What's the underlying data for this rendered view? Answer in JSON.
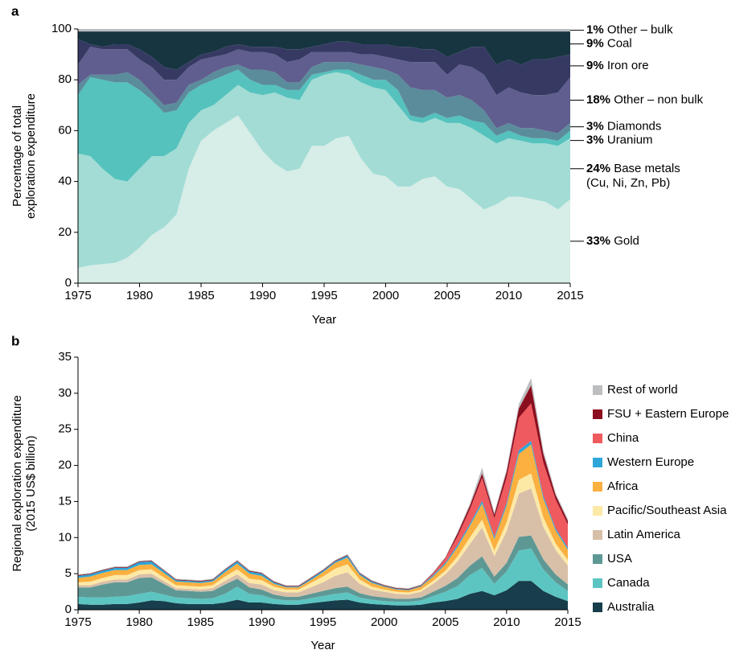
{
  "chart_data": [
    {
      "type": "stacked_area",
      "panel": "a",
      "xlabel": "Year",
      "ylabel": [
        "Percentage of total",
        "exploration expenditure"
      ],
      "x": [
        1975,
        1976,
        1977,
        1978,
        1979,
        1980,
        1981,
        1982,
        1983,
        1984,
        1985,
        1986,
        1987,
        1988,
        1989,
        1990,
        1991,
        1992,
        1993,
        1994,
        1995,
        1996,
        1997,
        1998,
        1999,
        2000,
        2001,
        2002,
        2003,
        2004,
        2005,
        2006,
        2007,
        2008,
        2009,
        2010,
        2011,
        2012,
        2013,
        2014,
        2015
      ],
      "xlim": [
        1975,
        2015
      ],
      "xticks": [
        1975,
        1980,
        1985,
        1990,
        1995,
        2000,
        2005,
        2010,
        2015
      ],
      "ylim": [
        0,
        100
      ],
      "yticks": [
        0,
        20,
        40,
        60,
        80,
        100
      ],
      "series": [
        {
          "name": "Gold",
          "end_label": "33%",
          "color": "#d7ede7",
          "values": [
            6,
            7,
            7.5,
            8,
            10,
            14,
            19,
            22,
            27,
            45,
            56,
            60,
            63,
            66,
            59,
            52,
            47,
            44,
            45,
            54,
            54,
            57,
            58,
            49,
            43,
            42,
            38,
            38,
            41,
            42,
            38,
            37,
            33,
            29,
            31,
            34,
            34,
            33,
            32,
            29,
            33
          ]
        },
        {
          "name": "Base metals",
          "note": "(Cu, Ni, Zn, Pb)",
          "end_label": "24%",
          "color": "#a2dcd5",
          "values": [
            45,
            43,
            37.5,
            33,
            30,
            31,
            31,
            28,
            26,
            18,
            12,
            10,
            11,
            12,
            16,
            22,
            28,
            29,
            27,
            26,
            28,
            26,
            24,
            30,
            34,
            34,
            32,
            26,
            22,
            23,
            25,
            26,
            28,
            29,
            24,
            23,
            22,
            22,
            23,
            25,
            24
          ]
        },
        {
          "name": "Uranium",
          "end_label": "3%",
          "color": "#55c2bd",
          "values": [
            23,
            31,
            35,
            38,
            39,
            31,
            22,
            17,
            15,
            12,
            10,
            10,
            8,
            6,
            5,
            4,
            3,
            3,
            4,
            2,
            1,
            1,
            2,
            3,
            3,
            4,
            6,
            2,
            2,
            2,
            2,
            3,
            3,
            5,
            3,
            3,
            2,
            2,
            2,
            2,
            3
          ]
        },
        {
          "name": "Diamonds",
          "end_label": "3%",
          "color": "#5b8c9b",
          "values": [
            4,
            1,
            2,
            3,
            4,
            4,
            3,
            3,
            3,
            3,
            2,
            3,
            3,
            2,
            4,
            6,
            5,
            3,
            3,
            3,
            4,
            3,
            3,
            4,
            5,
            4,
            6,
            11,
            11,
            9,
            8,
            8,
            8,
            5,
            3,
            3,
            3,
            4,
            3,
            3,
            3
          ]
        },
        {
          "name": "Other – non bulk",
          "end_label": "18%",
          "color": "#5f5e8f",
          "values": [
            8,
            11,
            10,
            10,
            9,
            8,
            10,
            10,
            9,
            7,
            8,
            6,
            5,
            6,
            7,
            7,
            7,
            8,
            9,
            6,
            4,
            4,
            4,
            4,
            5,
            5,
            6,
            10,
            11,
            11,
            9,
            12,
            13,
            14,
            13,
            14,
            14,
            13,
            14,
            16,
            18
          ]
        },
        {
          "name": "Iron ore",
          "end_label": "9%",
          "color": "#363a63",
          "values": [
            10,
            1,
            1,
            2,
            2,
            4,
            4,
            5,
            4,
            2,
            2,
            2,
            3,
            2,
            2,
            2,
            3,
            5,
            4,
            2,
            3,
            4,
            4,
            4,
            4,
            5,
            5,
            6,
            5,
            5,
            7,
            5,
            8,
            11,
            12,
            11,
            11,
            14,
            14,
            14,
            9
          ]
        },
        {
          "name": "Coal",
          "end_label": "9%",
          "color": "#163540",
          "values": [
            3,
            5,
            6,
            5,
            5,
            7,
            10,
            14,
            15,
            12,
            9,
            8,
            6,
            5,
            6,
            6,
            6,
            7,
            7,
            6,
            5,
            4,
            4,
            5,
            5,
            5,
            6,
            6,
            7,
            7,
            10,
            8,
            6,
            6,
            13,
            11,
            13,
            11,
            11,
            10,
            9
          ]
        },
        {
          "name": "Other – bulk",
          "end_label": "1%",
          "color": "#b9bdc0",
          "values": [
            1,
            1,
            1,
            1,
            1,
            1,
            1,
            1,
            1,
            1,
            1,
            1,
            1,
            1,
            1,
            1,
            1,
            1,
            1,
            1,
            1,
            1,
            1,
            1,
            1,
            1,
            1,
            1,
            1,
            1,
            1,
            1,
            1,
            1,
            1,
            1,
            1,
            1,
            1,
            1,
            1
          ]
        }
      ]
    },
    {
      "type": "stacked_area",
      "panel": "b",
      "xlabel": "Year",
      "ylabel": [
        "Regional exploration expenditure",
        "(2015 US$ billion)"
      ],
      "legend": "right",
      "x": [
        1975,
        1976,
        1977,
        1978,
        1979,
        1980,
        1981,
        1982,
        1983,
        1984,
        1985,
        1986,
        1987,
        1988,
        1989,
        1990,
        1991,
        1992,
        1993,
        1994,
        1995,
        1996,
        1997,
        1998,
        1999,
        2000,
        2001,
        2002,
        2003,
        2004,
        2005,
        2006,
        2007,
        2008,
        2009,
        2010,
        2011,
        2012,
        2013,
        2014,
        2015
      ],
      "xlim": [
        1975,
        2015
      ],
      "xticks": [
        1975,
        1980,
        1985,
        1990,
        1995,
        2000,
        2005,
        2010,
        2015
      ],
      "ylim": [
        0,
        35
      ],
      "yticks": [
        0,
        5,
        10,
        15,
        20,
        25,
        30,
        35
      ],
      "series": [
        {
          "name": "Australia",
          "color": "#173e4a",
          "values": [
            0.8,
            0.7,
            0.7,
            0.8,
            0.8,
            1.0,
            1.3,
            1.2,
            0.9,
            0.8,
            0.8,
            0.8,
            1.0,
            1.4,
            1.0,
            1.0,
            0.8,
            0.7,
            0.7,
            0.9,
            1.1,
            1.3,
            1.4,
            1.0,
            0.8,
            0.7,
            0.6,
            0.6,
            0.7,
            1.0,
            1.2,
            1.5,
            2.2,
            2.6,
            2.0,
            2.7,
            4.0,
            4.0,
            2.6,
            1.8,
            1.2
          ]
        },
        {
          "name": "Canada",
          "color": "#5cc5c1",
          "values": [
            1.0,
            1.0,
            1.0,
            1.0,
            1.1,
            1.2,
            1.2,
            0.9,
            0.8,
            0.8,
            0.7,
            0.8,
            1.2,
            1.8,
            1.2,
            1.0,
            0.7,
            0.6,
            0.6,
            0.7,
            0.8,
            0.9,
            1.0,
            0.7,
            0.6,
            0.5,
            0.5,
            0.5,
            0.6,
            0.9,
            1.3,
            1.8,
            2.6,
            3.2,
            1.6,
            2.6,
            4.2,
            4.5,
            3.0,
            2.0,
            1.4
          ]
        },
        {
          "name": "USA",
          "color": "#5e9895",
          "values": [
            1.3,
            1.4,
            1.8,
            2.0,
            1.9,
            2.2,
            2.0,
            1.5,
            1.0,
            1.0,
            1.0,
            1.0,
            1.3,
            1.1,
            0.9,
            0.8,
            0.6,
            0.5,
            0.5,
            0.6,
            0.7,
            0.8,
            0.8,
            0.6,
            0.5,
            0.5,
            0.4,
            0.4,
            0.4,
            0.6,
            0.8,
            1.1,
            1.3,
            1.6,
            1.0,
            1.2,
            1.9,
            1.8,
            1.4,
            1.1,
            0.9
          ]
        },
        {
          "name": "Latin America",
          "color": "#d8bfa8",
          "values": [
            0.3,
            0.3,
            0.4,
            0.4,
            0.4,
            0.5,
            0.5,
            0.4,
            0.3,
            0.3,
            0.3,
            0.4,
            0.5,
            0.6,
            0.6,
            0.7,
            0.6,
            0.6,
            0.6,
            0.9,
            1.2,
            1.7,
            2.0,
            1.3,
            0.9,
            0.8,
            0.7,
            0.6,
            0.8,
            1.1,
            1.6,
            2.3,
            3.0,
            4.0,
            2.8,
            4.4,
            6.0,
            6.5,
            4.5,
            3.4,
            2.6
          ]
        },
        {
          "name": "Pacific/Southeast Asia",
          "color": "#fde9a6",
          "values": [
            0.4,
            0.5,
            0.5,
            0.6,
            0.6,
            0.6,
            0.6,
            0.5,
            0.4,
            0.4,
            0.4,
            0.4,
            0.6,
            0.7,
            0.6,
            0.6,
            0.5,
            0.4,
            0.4,
            0.6,
            0.8,
            1.0,
            1.1,
            0.6,
            0.4,
            0.3,
            0.3,
            0.3,
            0.3,
            0.4,
            0.5,
            0.7,
            0.9,
            1.1,
            0.8,
            1.2,
            1.9,
            2.1,
            1.3,
            0.9,
            0.8
          ]
        },
        {
          "name": "Africa",
          "color": "#fbb040",
          "values": [
            0.6,
            0.7,
            0.7,
            0.7,
            0.7,
            0.7,
            0.7,
            0.6,
            0.5,
            0.5,
            0.5,
            0.5,
            0.6,
            0.8,
            0.7,
            0.6,
            0.4,
            0.3,
            0.3,
            0.4,
            0.6,
            0.8,
            0.9,
            0.6,
            0.5,
            0.4,
            0.3,
            0.3,
            0.4,
            0.6,
            0.9,
            1.3,
            1.6,
            2.2,
            1.6,
            2.3,
            3.6,
            4.0,
            2.6,
            1.8,
            1.4
          ]
        },
        {
          "name": "Western Europe",
          "color": "#2ea6d9",
          "values": [
            0.3,
            0.3,
            0.3,
            0.3,
            0.3,
            0.4,
            0.4,
            0.3,
            0.2,
            0.2,
            0.2,
            0.2,
            0.3,
            0.3,
            0.3,
            0.3,
            0.2,
            0.1,
            0.1,
            0.2,
            0.2,
            0.2,
            0.3,
            0.2,
            0.2,
            0.1,
            0.1,
            0.1,
            0.1,
            0.2,
            0.2,
            0.3,
            0.3,
            0.4,
            0.3,
            0.4,
            0.5,
            0.5,
            0.4,
            0.3,
            0.3
          ]
        },
        {
          "name": "China",
          "color": "#ef5a5f",
          "values": [
            0,
            0,
            0,
            0,
            0,
            0,
            0,
            0,
            0,
            0,
            0,
            0,
            0,
            0,
            0,
            0,
            0,
            0,
            0,
            0,
            0,
            0,
            0,
            0,
            0,
            0,
            0,
            0,
            0,
            0.2,
            0.6,
            1.2,
            2.0,
            3.2,
            2.6,
            3.5,
            4.5,
            5.2,
            4.6,
            4.0,
            3.2
          ]
        },
        {
          "name": "FSU + Eastern Europe",
          "color": "#8b0e1e",
          "values": [
            0.1,
            0.1,
            0.1,
            0.1,
            0.1,
            0.1,
            0.1,
            0.1,
            0.1,
            0.1,
            0.1,
            0.1,
            0.1,
            0.1,
            0.1,
            0.1,
            0.1,
            0.1,
            0.1,
            0.1,
            0.1,
            0.1,
            0.1,
            0.1,
            0.1,
            0.1,
            0.1,
            0.1,
            0.1,
            0.1,
            0.1,
            0.4,
            0.5,
            0.6,
            0.5,
            0.8,
            1.3,
            2.5,
            1.2,
            0.6,
            0.5
          ]
        },
        {
          "name": "Rest of world",
          "color": "#bcbec0",
          "values": [
            0.1,
            0.1,
            0.1,
            0.1,
            0.1,
            0.1,
            0.1,
            0.1,
            0.1,
            0.1,
            0.1,
            0.1,
            0.1,
            0.1,
            0.1,
            0.1,
            0.1,
            0.1,
            0.1,
            0.1,
            0.1,
            0.1,
            0.1,
            0.1,
            0.1,
            0.1,
            0.1,
            0.1,
            0.1,
            0.1,
            0.1,
            0.2,
            0.3,
            0.8,
            0.3,
            0.4,
            0.6,
            1.0,
            0.5,
            0.3,
            0.3
          ]
        }
      ]
    }
  ]
}
